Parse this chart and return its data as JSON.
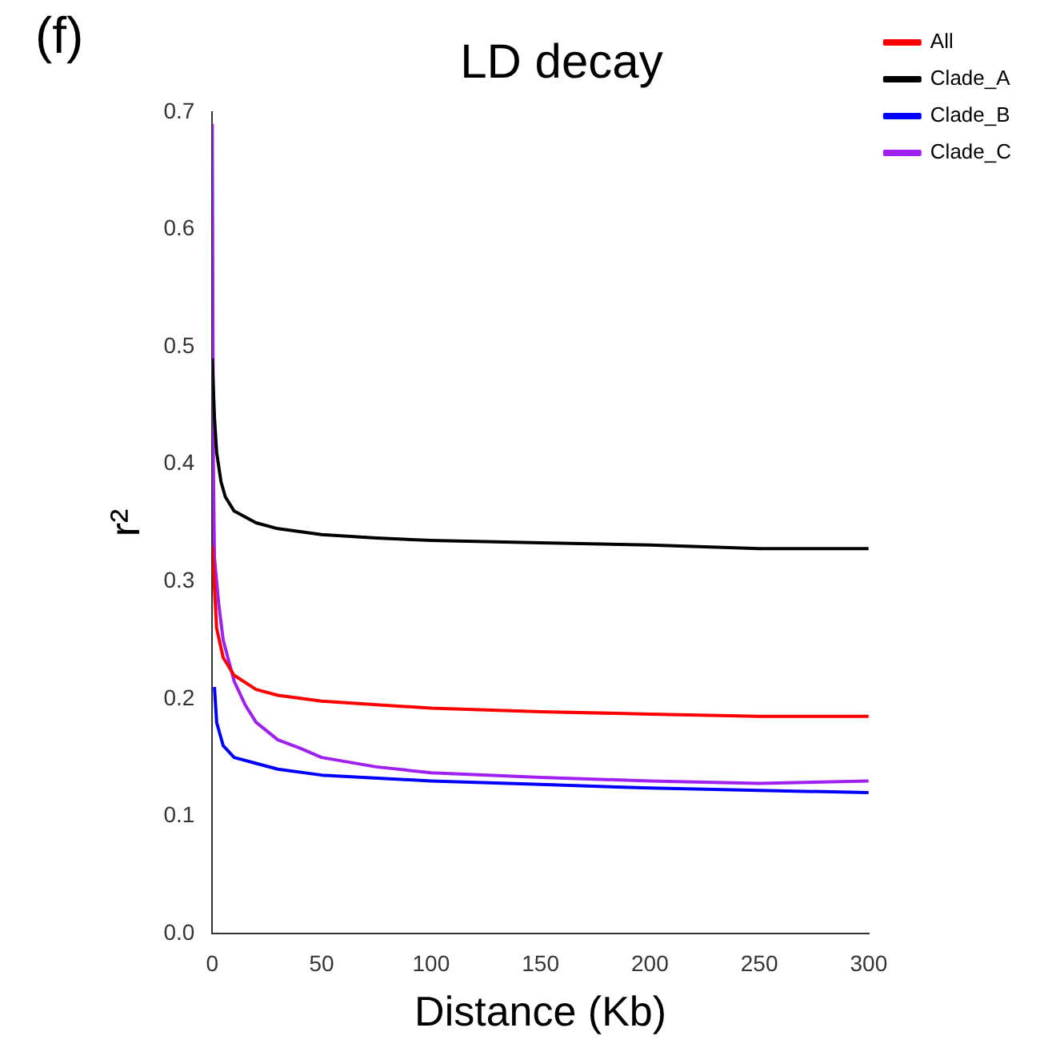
{
  "chart_data": {
    "type": "line",
    "title": "LD decay",
    "xlabel": "Distance (Kb)",
    "ylabel": "r²",
    "annotations": [
      "(f)"
    ],
    "xlim": [
      0,
      300
    ],
    "xticks": [
      0,
      50,
      100,
      150,
      200,
      250,
      300
    ],
    "ylim": [
      0,
      0.7
    ],
    "yticks": [
      {
        "value": 0,
        "label": "0.0"
      },
      0.1,
      0.2,
      0.3,
      0.4,
      0.5,
      0.6,
      0.7
    ],
    "grid": false,
    "legend": "top right",
    "marker": "none",
    "line_style": "solid",
    "series": [
      {
        "name": "All",
        "color": "#ff0000",
        "x": [
          0,
          2,
          5,
          10,
          20,
          30,
          50,
          75,
          100,
          150,
          200,
          250,
          300
        ],
        "values": [
          0.33,
          0.26,
          0.235,
          0.22,
          0.208,
          0.203,
          0.198,
          0.195,
          0.192,
          0.189,
          0.187,
          0.185,
          0.185
        ]
      },
      {
        "name": "Clade_A",
        "color": "#000000",
        "x": [
          0,
          1,
          2,
          4,
          6,
          10,
          20,
          30,
          50,
          75,
          100,
          150,
          200,
          250,
          300
        ],
        "values": [
          0.49,
          0.44,
          0.41,
          0.385,
          0.372,
          0.36,
          0.35,
          0.345,
          0.34,
          0.337,
          0.335,
          0.333,
          0.331,
          0.328,
          0.328
        ]
      },
      {
        "name": "Clade_B",
        "color": "#0000ff",
        "x": [
          1,
          2,
          5,
          10,
          20,
          30,
          50,
          100,
          150,
          200,
          250,
          300
        ],
        "values": [
          0.21,
          0.18,
          0.16,
          0.15,
          0.145,
          0.14,
          0.135,
          0.13,
          0.127,
          0.124,
          0.122,
          0.12
        ]
      },
      {
        "name": "Clade_C",
        "color": "#a020f0",
        "x": [
          0,
          0.5,
          1,
          3,
          5,
          10,
          15,
          20,
          30,
          40,
          50,
          75,
          100,
          150,
          200,
          250,
          300
        ],
        "values": [
          0.69,
          0.4,
          0.32,
          0.28,
          0.25,
          0.215,
          0.195,
          0.18,
          0.165,
          0.158,
          0.15,
          0.142,
          0.137,
          0.133,
          0.13,
          0.128,
          0.13
        ]
      }
    ]
  }
}
